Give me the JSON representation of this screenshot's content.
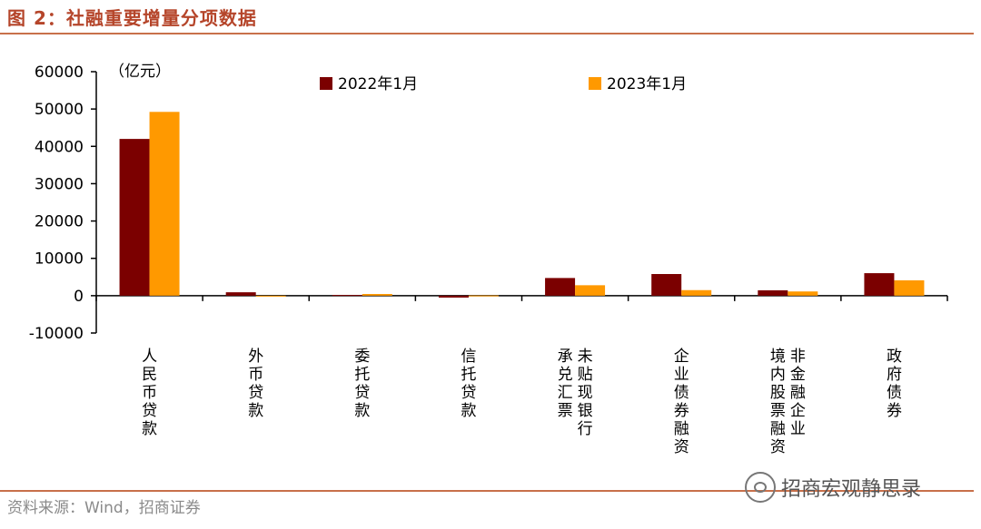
{
  "figure": {
    "title": "图 2：社融重要增量分项数据",
    "source": "资料来源：Wind，招商证券",
    "watermark": "招商宏观静思录"
  },
  "chart_data": {
    "type": "bar",
    "title": "",
    "unit_label": "（亿元）",
    "xlabel": "",
    "ylabel": "",
    "ylim": [
      -10000,
      60000
    ],
    "yticks": [
      -10000,
      0,
      10000,
      20000,
      30000,
      40000,
      50000,
      60000
    ],
    "categories": [
      [
        "人民币贷款"
      ],
      [
        "外币贷款"
      ],
      [
        "委托贷款"
      ],
      [
        "信托贷款"
      ],
      [
        "未贴现银行",
        "承兑汇票"
      ],
      [
        "企业债券融资"
      ],
      [
        "非金融企业",
        "境内股票融资"
      ],
      [
        "政府债券"
      ]
    ],
    "series": [
      {
        "name": "2022年1月",
        "color": "#7b0000",
        "values": [
          41988,
          910,
          182,
          -511,
          4733,
          5798,
          1439,
          6026
        ]
      },
      {
        "name": "2023年1月",
        "color": "#ff9900",
        "values": [
          49231,
          -224,
          447,
          58,
          2796,
          1486,
          1131,
          4119
        ]
      }
    ],
    "grid": false,
    "legend_position": "top"
  }
}
